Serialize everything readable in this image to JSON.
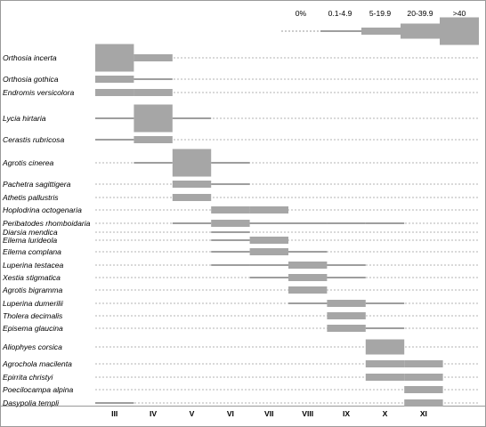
{
  "chart_data": {
    "type": "phenology",
    "legend": {
      "classes": [
        "0%",
        "0.1-4.9",
        "5-19.9",
        "20-39.9",
        ">40"
      ],
      "colors": {
        "fill": "#a6a6a6",
        "line": "#7f7f7f",
        "dash": "#9a9a9a"
      }
    },
    "months": [
      "III",
      "IV",
      "V",
      "VI",
      "VII",
      "VIII",
      "IX",
      "X",
      "XI"
    ],
    "species": [
      {
        "name": "Orthosia incerta",
        "levels": [
          4,
          2,
          0,
          0,
          0,
          0,
          0,
          0,
          0
        ]
      },
      {
        "name": "Orthosia gothica",
        "levels": [
          2,
          1,
          0,
          0,
          0,
          0,
          0,
          0,
          0
        ]
      },
      {
        "name": "Endromis versicolora",
        "levels": [
          2,
          2,
          0,
          0,
          0,
          0,
          0,
          0,
          0
        ]
      },
      {
        "name": "Lycia hirtaria",
        "levels": [
          1,
          4,
          1,
          0,
          0,
          0,
          0,
          0,
          0
        ]
      },
      {
        "name": "Cerastis rubricosa",
        "levels": [
          1,
          2,
          0,
          0,
          0,
          0,
          0,
          0,
          0
        ]
      },
      {
        "name": "Agrotis cinerea",
        "levels": [
          0,
          1,
          4,
          1,
          0,
          0,
          0,
          0,
          0
        ]
      },
      {
        "name": "Pachetra sagittigera",
        "levels": [
          0,
          0,
          2,
          1,
          0,
          0,
          0,
          0,
          0
        ]
      },
      {
        "name": "Athetis pallustris",
        "levels": [
          0,
          0,
          2,
          0,
          0,
          0,
          0,
          0,
          0
        ]
      },
      {
        "name": "Hoplodrina octogenaria",
        "levels": [
          0,
          0,
          0,
          2,
          2,
          0,
          0,
          0,
          0
        ]
      },
      {
        "name": "Peribatodes rhomboidaria",
        "levels": [
          0,
          0,
          1,
          2,
          1,
          1,
          1,
          1,
          0
        ]
      },
      {
        "name": "Diarsia mendica",
        "levels": [
          0,
          0,
          0,
          1,
          0,
          0,
          0,
          0,
          0
        ]
      },
      {
        "name": "Eilema lurideola",
        "levels": [
          0,
          0,
          0,
          1,
          2,
          0,
          0,
          0,
          0
        ]
      },
      {
        "name": "Eilema complana",
        "levels": [
          0,
          0,
          0,
          1,
          2,
          1,
          0,
          0,
          0
        ]
      },
      {
        "name": "Luperina testacea",
        "levels": [
          0,
          0,
          0,
          1,
          1,
          2,
          1,
          0,
          0
        ]
      },
      {
        "name": "Xestia stigmatica",
        "levels": [
          0,
          0,
          0,
          0,
          1,
          2,
          1,
          0,
          0
        ]
      },
      {
        "name": "Agrotis bigramma",
        "levels": [
          0,
          0,
          0,
          0,
          0,
          2,
          0,
          0,
          0
        ]
      },
      {
        "name": "Luperina dumerilii",
        "levels": [
          0,
          0,
          0,
          0,
          0,
          1,
          2,
          1,
          0
        ]
      },
      {
        "name": "Tholera decimalis",
        "levels": [
          0,
          0,
          0,
          0,
          0,
          0,
          2,
          0,
          0
        ]
      },
      {
        "name": "Episema glaucina",
        "levels": [
          0,
          0,
          0,
          0,
          0,
          0,
          2,
          1,
          0
        ]
      },
      {
        "name": "Aliophyes corsica",
        "levels": [
          0,
          0,
          0,
          0,
          0,
          0,
          0,
          3,
          0
        ]
      },
      {
        "name": "Agrochola macilenta",
        "levels": [
          0,
          0,
          0,
          0,
          0,
          0,
          0,
          2,
          2
        ]
      },
      {
        "name": "Epirrita christyi",
        "levels": [
          0,
          0,
          0,
          0,
          0,
          0,
          0,
          2,
          2
        ]
      },
      {
        "name": "Poecilocampa alpina",
        "levels": [
          0,
          0,
          0,
          0,
          0,
          0,
          0,
          0,
          2
        ]
      },
      {
        "name": "Dasypolia templi",
        "levels": [
          1,
          0,
          0,
          0,
          0,
          0,
          0,
          0,
          2
        ]
      }
    ]
  }
}
